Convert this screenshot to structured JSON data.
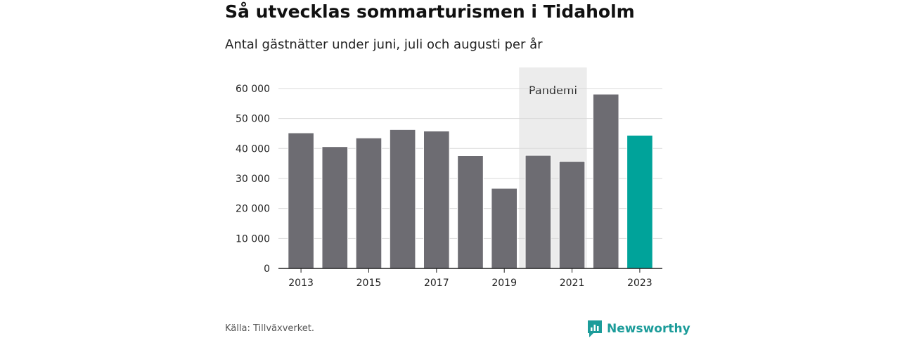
{
  "title": "Så utvecklas sommarturismen i Tidaholm",
  "subtitle": "Antal gästnätter under juni, juli och augusti per år",
  "source": "Källa: Tillväxverket.",
  "brand": {
    "name": "Newsworthy",
    "icon": "newsworthy-logo-icon",
    "color": "#1c9c9a"
  },
  "chart_data": {
    "type": "bar",
    "categories": [
      "2013",
      "2014",
      "2015",
      "2016",
      "2017",
      "2018",
      "2019",
      "2020",
      "2021",
      "2022",
      "2023"
    ],
    "values": [
      45200,
      40600,
      43500,
      46300,
      45800,
      37600,
      26700,
      37700,
      35700,
      58100,
      44400
    ],
    "x_tick_labels": [
      "2013",
      "2015",
      "2017",
      "2019",
      "2021",
      "2023"
    ],
    "y_ticks": [
      0,
      10000,
      20000,
      30000,
      40000,
      50000,
      60000
    ],
    "y_tick_labels": [
      "0",
      "10 000",
      "20 000",
      "30 000",
      "40 000",
      "50 000",
      "60 000"
    ],
    "ylim": [
      0,
      67000
    ],
    "grid": true,
    "bar_color": "#6d6c72",
    "highlight_color": "#00a39a",
    "highlight_category": "2023",
    "annotation": {
      "label": "Pandemi",
      "from": "2020",
      "to": "2021",
      "color": "#ececec"
    }
  }
}
